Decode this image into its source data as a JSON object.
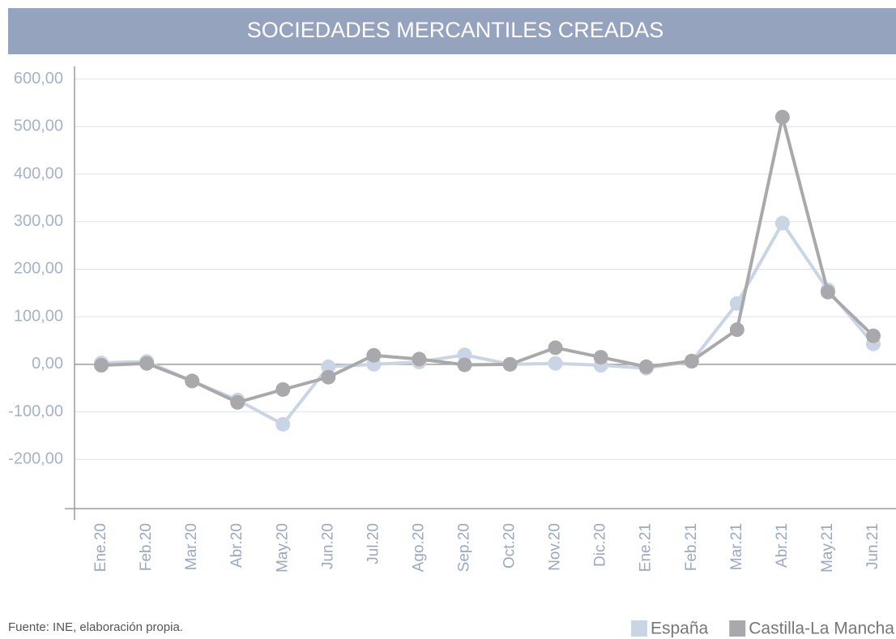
{
  "chart_data": {
    "type": "line",
    "title": "SOCIEDADES MERCANTILES CREADAS",
    "categories": [
      "Ene.20",
      "Feb.20",
      "Mar.20",
      "Abr.20",
      "May.20",
      "Jun.20",
      "Jul.20",
      "Ago.20",
      "Sep.20",
      "Oct.20",
      "Nov.20",
      "Dic.20",
      "Ene.21",
      "Feb.21",
      "Mar.21",
      "Abr.21",
      "May.21",
      "Jun.21"
    ],
    "series": [
      {
        "name": "España",
        "color": "#c9d5e4",
        "values": [
          3,
          6,
          -35,
          -75,
          -126,
          -5,
          0,
          5,
          20,
          0,
          2,
          -2,
          -8,
          6,
          128,
          297,
          157,
          43
        ]
      },
      {
        "name": "Castilla-La Mancha",
        "color": "#a9a9ab",
        "values": [
          -2,
          2,
          -35,
          -80,
          -53,
          -27,
          19,
          11,
          -1,
          0,
          35,
          15,
          -5,
          7,
          73,
          520,
          152,
          60
        ]
      }
    ],
    "ylim": [
      -300,
      630
    ],
    "yticks": [
      {
        "value": -200,
        "label": "-200,00"
      },
      {
        "value": -100,
        "label": "-100,00"
      },
      {
        "value": 0,
        "label": "0,00"
      },
      {
        "value": 100,
        "label": "100,00"
      },
      {
        "value": 200,
        "label": "200,00"
      },
      {
        "value": 300,
        "label": "300,00"
      },
      {
        "value": 400,
        "label": "400,00"
      },
      {
        "value": 500,
        "label": "500,00"
      },
      {
        "value": 600,
        "label": "600,00"
      }
    ],
    "grid": true,
    "legend": "bottom-right",
    "source": "Fuente: INE, elaboración propia."
  }
}
